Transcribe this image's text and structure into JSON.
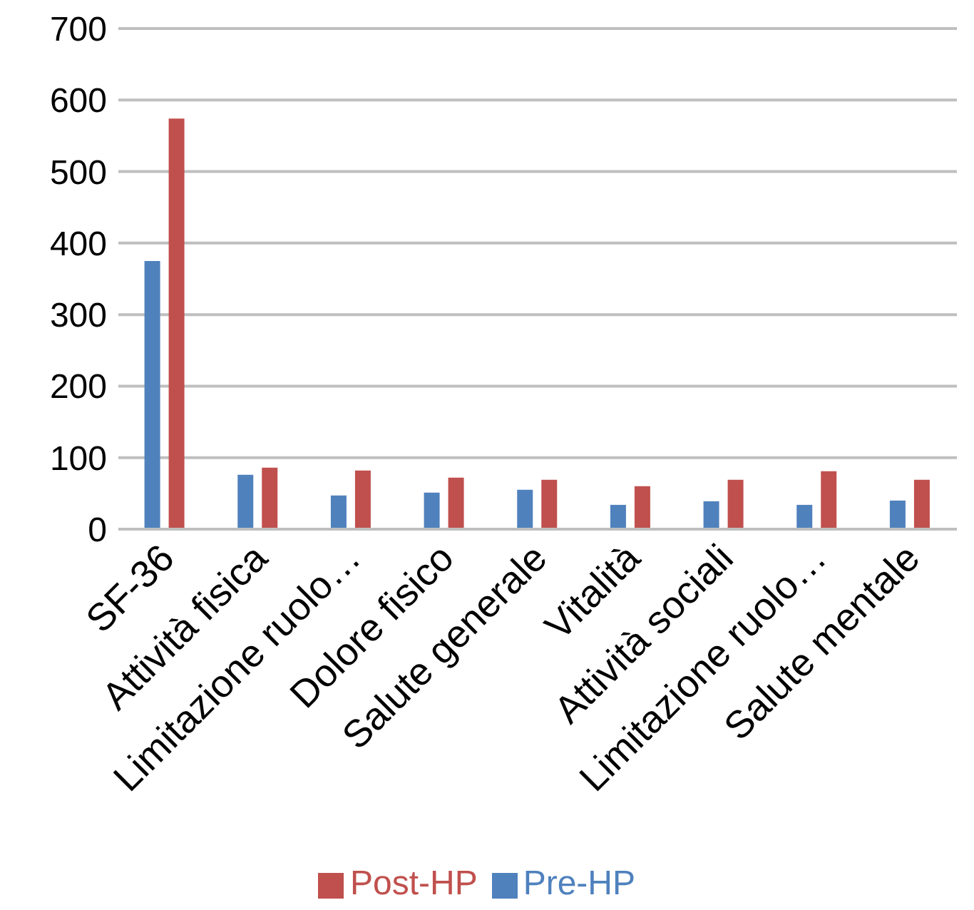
{
  "chart_data": {
    "type": "bar",
    "categories": [
      "SF-36",
      "Attività fisica",
      "Limitazione ruolo…",
      "Dolore fisico",
      "Salute generale",
      "Vitalità",
      "Attività sociali",
      "Limitazione ruolo…",
      "Salute mentale"
    ],
    "series": [
      {
        "name": "Pre-HP",
        "color": "#4f81bd",
        "values": [
          375,
          76,
          47,
          51,
          55,
          34,
          39,
          34,
          40
        ]
      },
      {
        "name": "Post-HP",
        "color": "#c0504d",
        "values": [
          574,
          86,
          82,
          72,
          69,
          60,
          69,
          81,
          69
        ]
      }
    ],
    "ylim": [
      0,
      700
    ],
    "yticks": [
      0,
      100,
      200,
      300,
      400,
      500,
      600,
      700
    ],
    "grid": "y",
    "legend": "bottom"
  }
}
